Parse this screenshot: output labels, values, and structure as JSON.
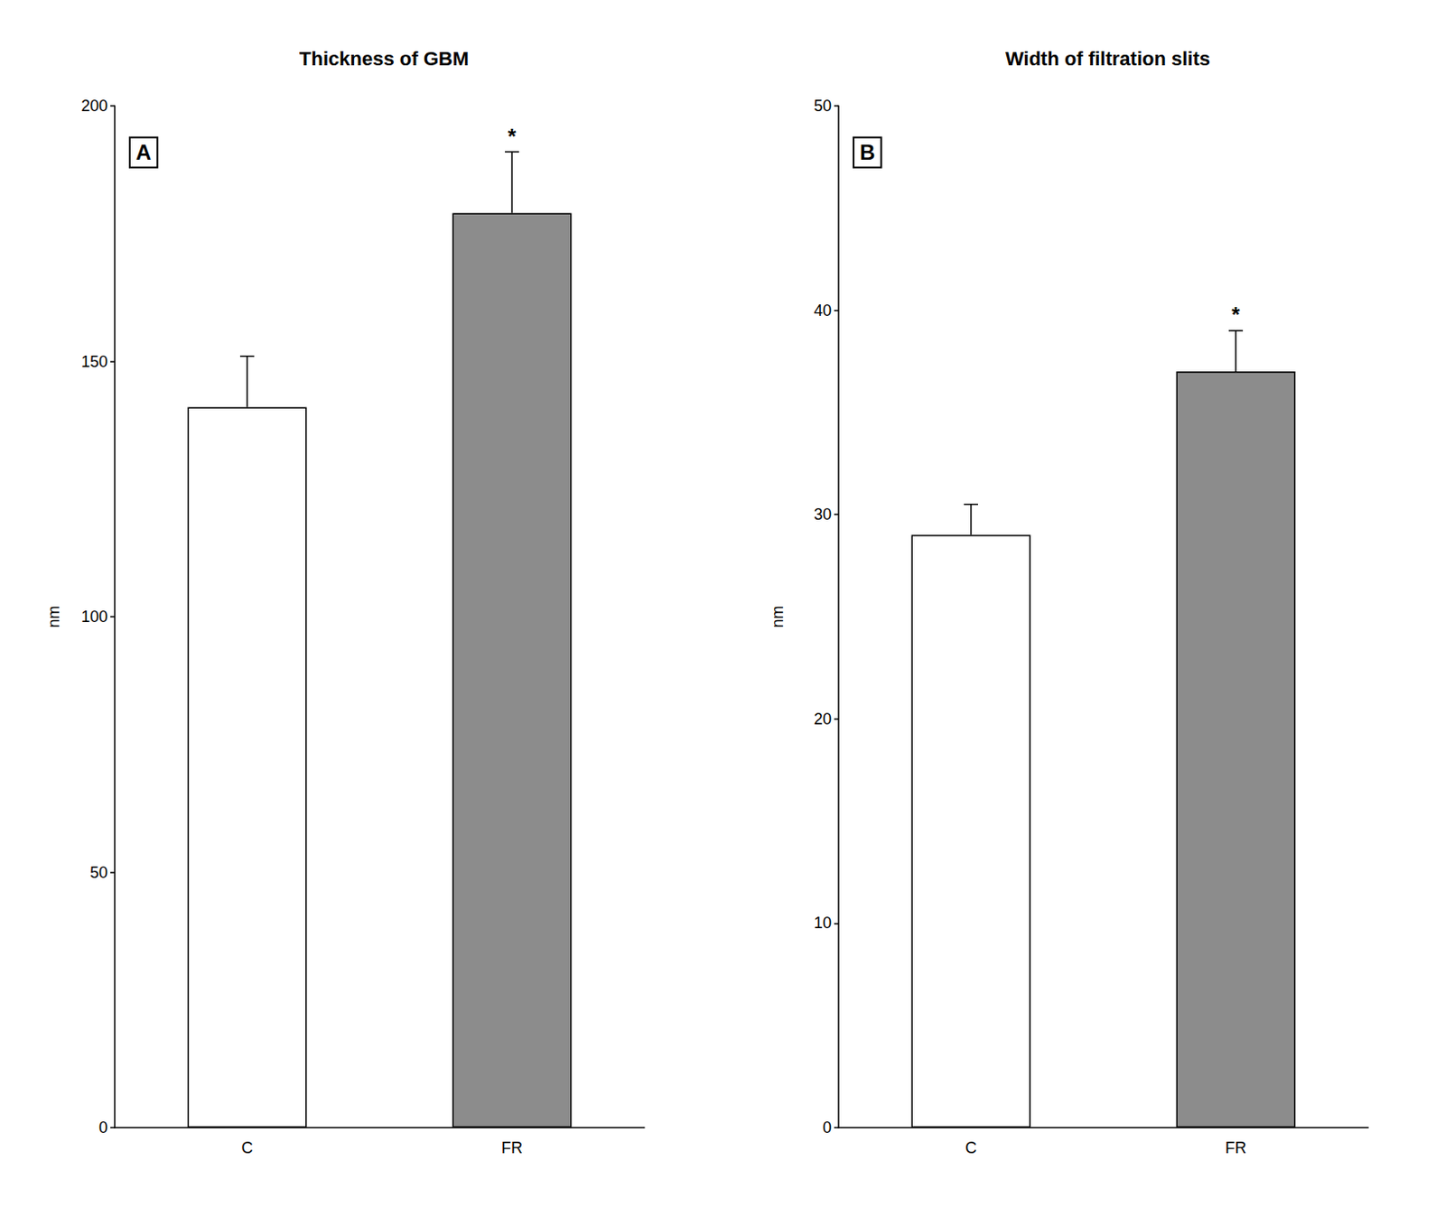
{
  "chart_data": [
    {
      "type": "bar",
      "title": "Thickness of GBM",
      "categories": [
        "C",
        "FR"
      ],
      "values": [
        141,
        179
      ],
      "errors": [
        10,
        12
      ],
      "colors": [
        "#ffffff",
        "#8c8c8c"
      ],
      "ylabel": "nm",
      "ylim": [
        0,
        200
      ],
      "yticks": [
        0,
        50,
        100,
        150,
        200
      ],
      "grid": false,
      "annotations": [
        {
          "text": "A"
        },
        {
          "text": "*",
          "category": "FR"
        }
      ]
    },
    {
      "type": "bar",
      "title": "Width of filtration slits",
      "categories": [
        "C",
        "FR"
      ],
      "values": [
        29,
        37
      ],
      "errors": [
        1.5,
        2.0
      ],
      "colors": [
        "#ffffff",
        "#8c8c8c"
      ],
      "ylabel": "nm",
      "ylim": [
        0,
        50
      ],
      "yticks": [
        0,
        10,
        20,
        30,
        40,
        50
      ],
      "grid": false,
      "annotations": [
        {
          "text": "B"
        },
        {
          "text": "*",
          "category": "FR"
        }
      ]
    }
  ]
}
